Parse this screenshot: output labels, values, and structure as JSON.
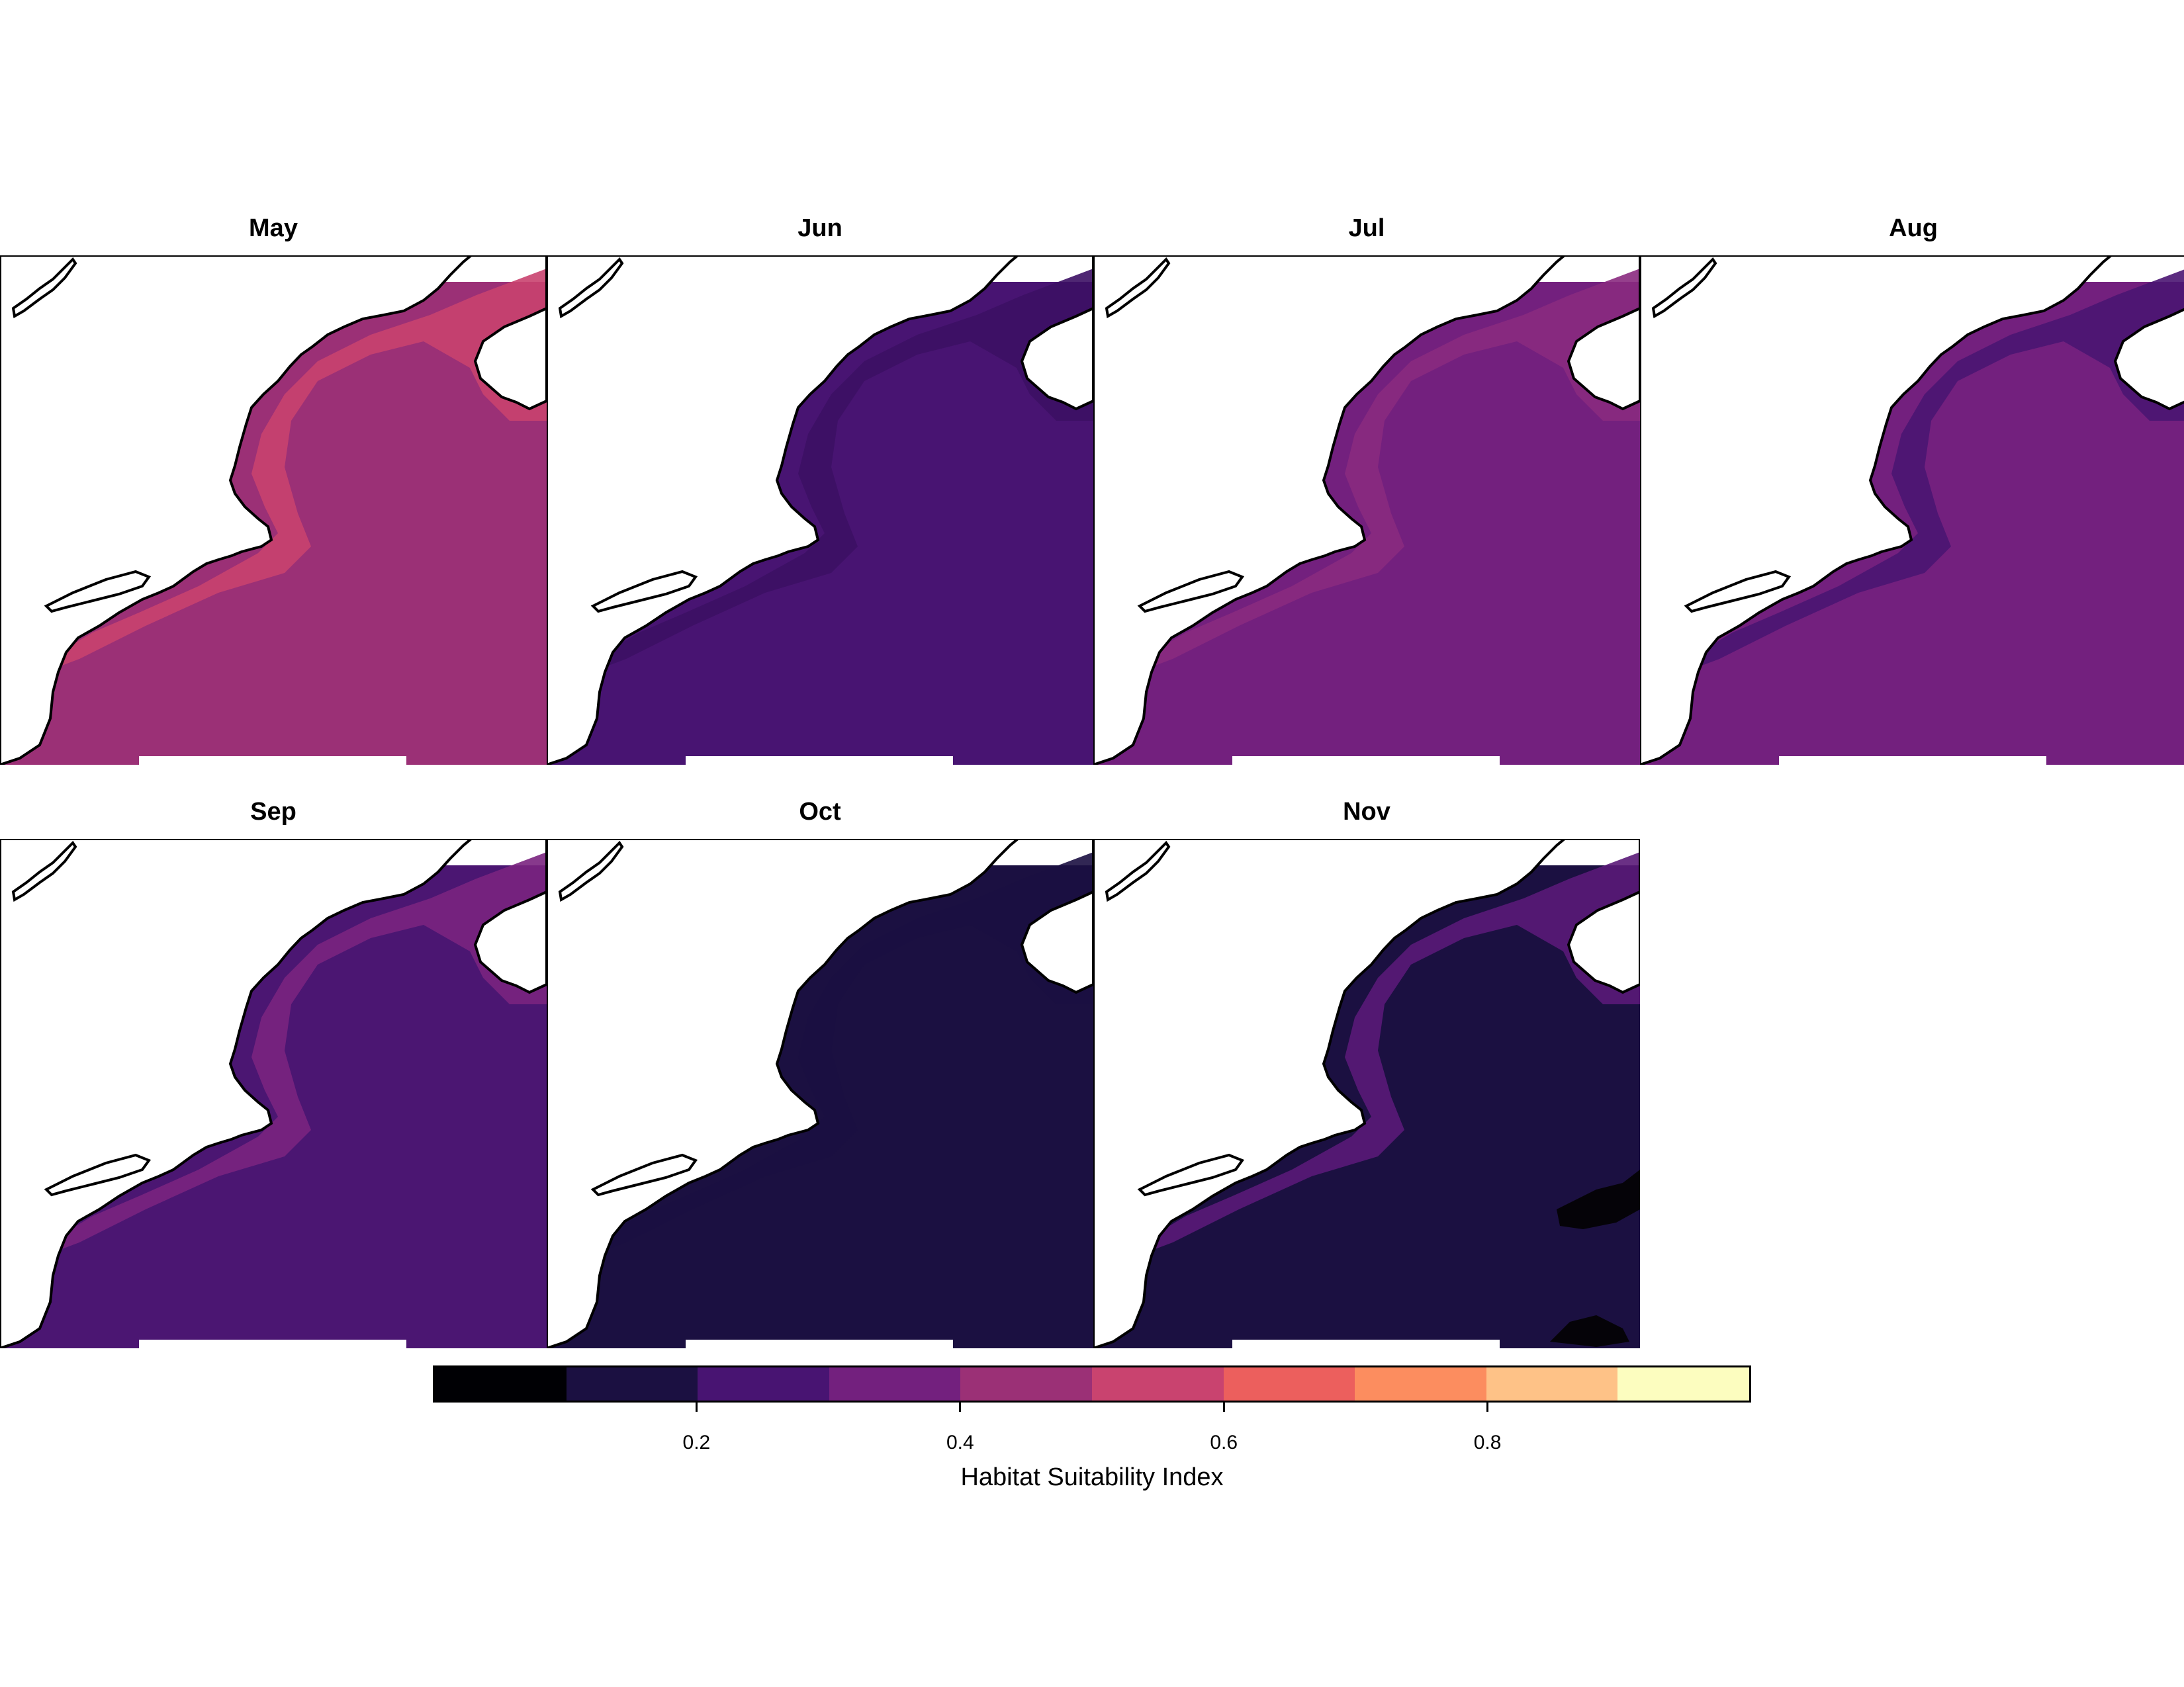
{
  "panels": [
    {
      "label": "May",
      "fill": "#9b3076",
      "coast_fill": "#c9436f",
      "band": "#d2536c"
    },
    {
      "label": "Jun",
      "fill": "#481472",
      "coast_fill": "#3c1064",
      "band": "#5a1a78"
    },
    {
      "label": "Jul",
      "fill": "#73207e",
      "coast_fill": "#8a2a80",
      "band": "#952d80"
    },
    {
      "label": "Aug",
      "fill": "#73207e",
      "coast_fill": "#4a1572",
      "band": "#4a1572"
    },
    {
      "label": "Sep",
      "fill": "#4b1672",
      "coast_fill": "#7a237f",
      "band": "#8a2a80"
    },
    {
      "label": "Oct",
      "fill": "#1b1041",
      "coast_fill": "#1b1041",
      "band": "#1b1041"
    },
    {
      "label": "Nov",
      "fill": "#1b1041",
      "coast_fill": "#5a1a78",
      "band": "#5a1a78",
      "dark_patch": "#050308"
    }
  ],
  "legend": {
    "title": "Habitat Suitability Index",
    "bins": [
      "#000004",
      "#1b1041",
      "#481472",
      "#73207e",
      "#9b3076",
      "#c9436f",
      "#ec5f5d",
      "#fc8d5f",
      "#fec287",
      "#fcfdbf"
    ],
    "ticks": [
      {
        "value": 0.2,
        "label": "0.2"
      },
      {
        "value": 0.4,
        "label": "0.4"
      },
      {
        "value": 0.6,
        "label": "0.6"
      },
      {
        "value": 0.8,
        "label": "0.8"
      }
    ],
    "range": [
      0,
      1
    ]
  }
}
